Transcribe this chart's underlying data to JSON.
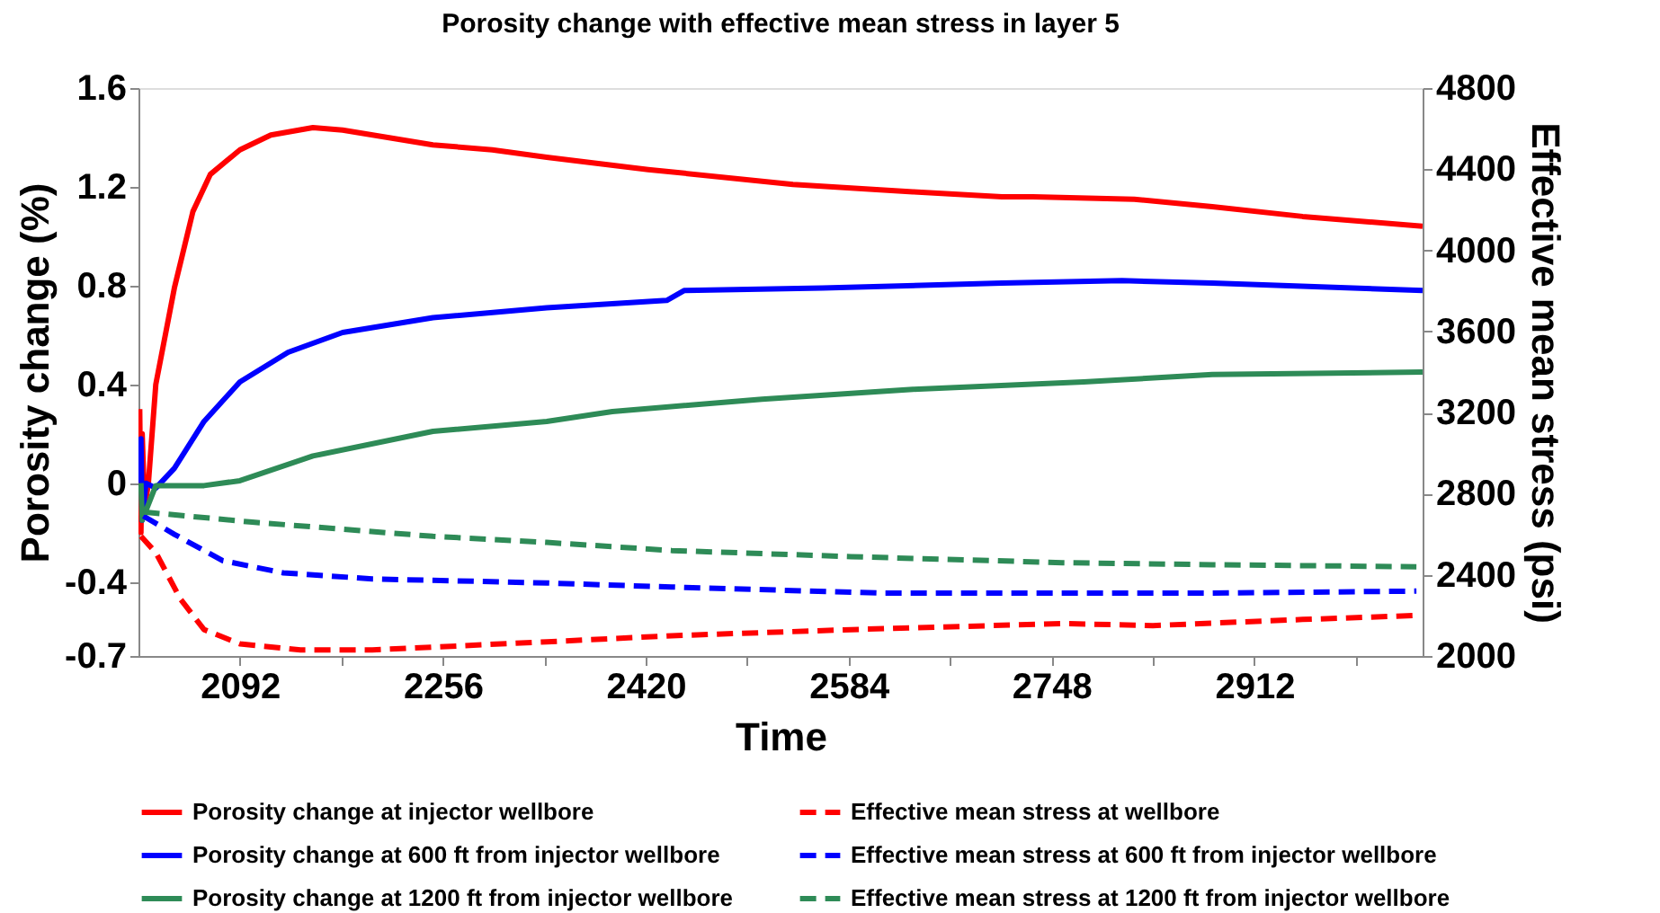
{
  "chart_data": {
    "type": "line",
    "title": "Porosity change with effective mean stress in layer 5",
    "xlabel": "Time",
    "ylabel": "Porosity change (%)",
    "y2label": "Effective mean stress (psi)",
    "xlim": [
      2010,
      3048
    ],
    "xticks": [
      2092,
      {
        "value": 2174,
        "label": null
      },
      2256,
      {
        "value": 2338,
        "label": null
      },
      2420,
      {
        "value": 2502,
        "label": null
      },
      2584,
      {
        "value": 2666,
        "label": null
      },
      2748,
      {
        "value": 2830,
        "label": null
      },
      2912,
      {
        "value": 2994,
        "label": null
      }
    ],
    "ylim": [
      -0.7,
      1.6
    ],
    "yticks": [
      -0.7,
      -0.4,
      0,
      0.4,
      0.8,
      1.2,
      1.6
    ],
    "y2lim": [
      2000,
      4800
    ],
    "y2ticks": [
      2000,
      2400,
      2800,
      3200,
      3600,
      4000,
      4400,
      4800
    ],
    "grid": false,
    "legend": "bottom",
    "series": [
      {
        "name": "Porosity change at injector wellbore",
        "color": "#ff0000",
        "line_style": "solid",
        "x": [
          2011,
          2012,
          2013,
          2015,
          2018,
          2024,
          2039,
          2054,
          2068,
          2092,
          2117,
          2151,
          2175,
          2248,
          2296,
          2340,
          2422,
          2539,
          2636,
          2708,
          2733,
          2815,
          2878,
          2951,
          3048
        ],
        "values": [
          0.3,
          -0.2,
          0.2,
          -0.1,
          0,
          0.4,
          0.79,
          1.1,
          1.25,
          1.35,
          1.41,
          1.44,
          1.43,
          1.37,
          1.35,
          1.32,
          1.27,
          1.21,
          1.18,
          1.16,
          1.16,
          1.15,
          1.12,
          1.08,
          1.04
        ]
      },
      {
        "name": "Effective mean stress at wellbore",
        "color": "#ff0000",
        "line_style": "dashed",
        "axis": "y2",
        "x": [
          2012,
          2024,
          2044,
          2063,
          2092,
          2141,
          2199,
          2340,
          2441,
          2586,
          2757,
          2830,
          2951,
          3043
        ],
        "values": [
          2590,
          2510,
          2280,
          2130,
          2060,
          2030,
          2030,
          2070,
          2100,
          2130,
          2160,
          2150,
          2180,
          2200
        ]
      },
      {
        "name": "Porosity change at 600 ft from injector wellbore",
        "color": "#0000ff",
        "line_style": "solid",
        "x": [
          2011,
          2012,
          2013,
          2016,
          2024,
          2039,
          2063,
          2092,
          2131,
          2175,
          2248,
          2340,
          2437,
          2451,
          2563,
          2708,
          2805,
          2878,
          3048
        ],
        "values": [
          0,
          0.18,
          -0.15,
          0,
          -0.02,
          0.06,
          0.25,
          0.41,
          0.53,
          0.61,
          0.67,
          0.71,
          0.74,
          0.78,
          0.79,
          0.81,
          0.82,
          0.81,
          0.78
        ]
      },
      {
        "name": "Effective mean stress at 600 ft from injector wellbore",
        "color": "#0000ff",
        "line_style": "dashed",
        "axis": "y2",
        "x": [
          2014,
          2039,
          2078,
          2127,
          2199,
          2340,
          2441,
          2611,
          2757,
          2878,
          3043
        ],
        "values": [
          2690,
          2600,
          2470,
          2410,
          2380,
          2360,
          2340,
          2310,
          2310,
          2310,
          2320
        ]
      },
      {
        "name": "Porosity change at 1200 ft from injector wellbore",
        "color": "#2e8b57",
        "line_style": "solid",
        "x": [
          2012,
          2013,
          2024,
          2063,
          2092,
          2151,
          2248,
          2340,
          2393,
          2514,
          2636,
          2774,
          2878,
          3048
        ],
        "values": [
          0,
          -0.15,
          -0.01,
          -0.01,
          0.01,
          0.11,
          0.21,
          0.25,
          0.29,
          0.34,
          0.38,
          0.41,
          0.44,
          0.45
        ]
      },
      {
        "name": "Effective mean stress at 1200 ft from injector wellbore",
        "color": "#2e8b57",
        "line_style": "dashed",
        "axis": "y2",
        "x": [
          2014,
          2102,
          2248,
          2340,
          2441,
          2586,
          2757,
          2878,
          3043
        ],
        "values": [
          2710,
          2660,
          2590,
          2560,
          2520,
          2490,
          2460,
          2450,
          2440
        ]
      }
    ]
  }
}
